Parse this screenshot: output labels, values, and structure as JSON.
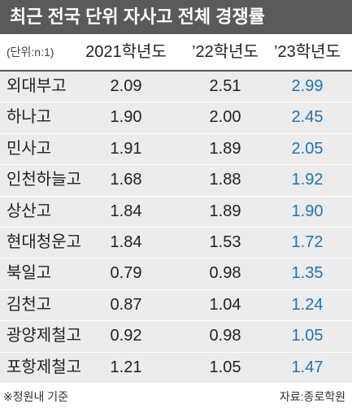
{
  "header": {
    "title": "최근 전국 단위 자사고 전체 경쟁률"
  },
  "table": {
    "unit": "(단위:n:1)",
    "columns": [
      "2021학년도",
      "’22학년도",
      "’23학년도"
    ],
    "rows": [
      [
        "외대부고",
        "2.09",
        "2.51",
        "2.99"
      ],
      [
        "하나고",
        "1.90",
        "2.00",
        "2.45"
      ],
      [
        "민사고",
        "1.91",
        "1.89",
        "2.05"
      ],
      [
        "인천하늘고",
        "1.68",
        "1.88",
        "1.92"
      ],
      [
        "상산고",
        "1.84",
        "1.89",
        "1.90"
      ],
      [
        "현대청운고",
        "1.84",
        "1.53",
        "1.72"
      ],
      [
        "북일고",
        "0.79",
        "0.98",
        "1.35"
      ],
      [
        "김천고",
        "0.87",
        "1.04",
        "1.24"
      ],
      [
        "광양제철고",
        "0.92",
        "0.98",
        "1.05"
      ],
      [
        "포항제철고",
        "1.21",
        "1.05",
        "1.47"
      ]
    ]
  },
  "footer": {
    "note": "※정원내 기준",
    "source": "자료:종로학원"
  }
}
